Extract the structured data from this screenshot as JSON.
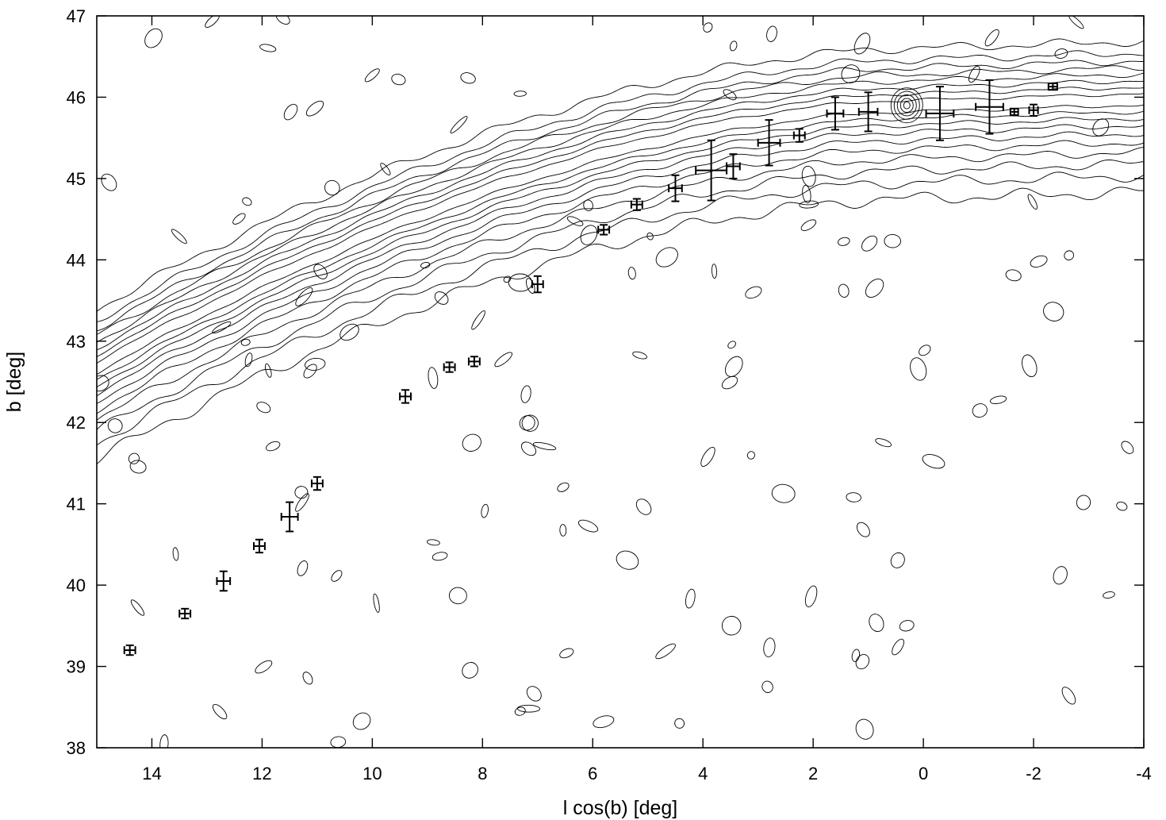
{
  "chart_data": {
    "type": "scatter",
    "title": "",
    "xlabel": "l cos(b) [deg]",
    "ylabel": "b [deg]",
    "xlim": [
      15,
      -4
    ],
    "ylim": [
      38,
      47
    ],
    "x_ticks": [
      14,
      12,
      10,
      8,
      6,
      4,
      2,
      0,
      -2,
      -4
    ],
    "x_tick_labels": [
      "14",
      "12",
      "10",
      "8",
      "6",
      "4",
      "2",
      "0",
      "-2",
      "-4"
    ],
    "y_ticks": [
      38,
      39,
      40,
      41,
      42,
      43,
      44,
      45,
      46,
      47
    ],
    "y_tick_labels": [
      "38",
      "39",
      "40",
      "41",
      "42",
      "43",
      "44",
      "45",
      "46",
      "47"
    ],
    "grid": false,
    "colors": {
      "line": "#000000",
      "background": "#ffffff"
    },
    "background_contours": "density contours of the stream",
    "points": [
      {
        "x": 14.4,
        "y": 39.2,
        "xerr": 0.1,
        "yerr": 0.06
      },
      {
        "x": 13.4,
        "y": 39.65,
        "xerr": 0.1,
        "yerr": 0.06
      },
      {
        "x": 12.7,
        "y": 40.05,
        "xerr": 0.12,
        "yerr": 0.12
      },
      {
        "x": 12.05,
        "y": 40.48,
        "xerr": 0.1,
        "yerr": 0.08
      },
      {
        "x": 11.5,
        "y": 40.84,
        "xerr": 0.15,
        "yerr": 0.18
      },
      {
        "x": 11.0,
        "y": 41.25,
        "xerr": 0.1,
        "yerr": 0.08
      },
      {
        "x": 9.4,
        "y": 42.32,
        "xerr": 0.1,
        "yerr": 0.08
      },
      {
        "x": 8.6,
        "y": 42.68,
        "xerr": 0.1,
        "yerr": 0.06
      },
      {
        "x": 8.15,
        "y": 42.75,
        "xerr": 0.1,
        "yerr": 0.06
      },
      {
        "x": 7.0,
        "y": 43.7,
        "xerr": 0.1,
        "yerr": 0.1
      },
      {
        "x": 5.8,
        "y": 44.37,
        "xerr": 0.1,
        "yerr": 0.06
      },
      {
        "x": 5.2,
        "y": 44.68,
        "xerr": 0.1,
        "yerr": 0.07
      },
      {
        "x": 4.5,
        "y": 44.88,
        "xerr": 0.12,
        "yerr": 0.16
      },
      {
        "x": 3.85,
        "y": 45.1,
        "xerr": 0.28,
        "yerr": 0.37
      },
      {
        "x": 3.45,
        "y": 45.15,
        "xerr": 0.12,
        "yerr": 0.15
      },
      {
        "x": 2.8,
        "y": 45.44,
        "xerr": 0.2,
        "yerr": 0.28
      },
      {
        "x": 2.25,
        "y": 45.53,
        "xerr": 0.1,
        "yerr": 0.08
      },
      {
        "x": 1.6,
        "y": 45.8,
        "xerr": 0.15,
        "yerr": 0.2
      },
      {
        "x": 1.0,
        "y": 45.82,
        "xerr": 0.17,
        "yerr": 0.24
      },
      {
        "x": -0.3,
        "y": 45.8,
        "xerr": 0.25,
        "yerr": 0.33
      },
      {
        "x": -1.2,
        "y": 45.88,
        "xerr": 0.25,
        "yerr": 0.33
      },
      {
        "x": -1.65,
        "y": 45.82,
        "xerr": 0.07,
        "yerr": 0.04
      },
      {
        "x": -2.0,
        "y": 45.84,
        "xerr": 0.08,
        "yerr": 0.07
      },
      {
        "x": -2.35,
        "y": 46.13,
        "xerr": 0.08,
        "yerr": 0.04
      }
    ]
  }
}
